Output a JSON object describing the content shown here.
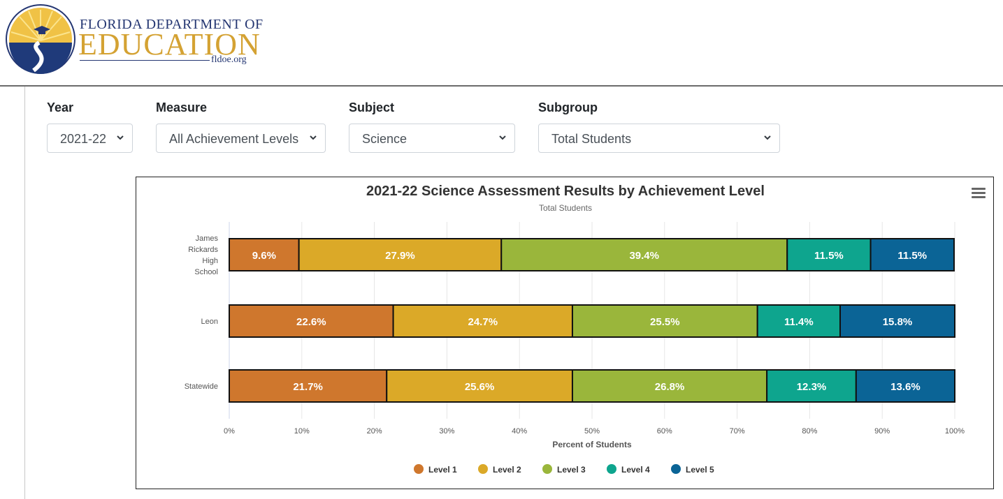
{
  "header": {
    "logo_line1": "FLORIDA DEPARTMENT OF",
    "logo_line2": "EDUCATION",
    "logo_url": "fldoe.org"
  },
  "filters": [
    {
      "label": "Year",
      "value": "2021-22"
    },
    {
      "label": "Measure",
      "value": "All Achievement Levels"
    },
    {
      "label": "Subject",
      "value": "Science"
    },
    {
      "label": "Subgroup",
      "value": "Total Students"
    }
  ],
  "chart_data": {
    "type": "bar",
    "orientation": "horizontal",
    "stacked": "percent",
    "title": "2021-22 Science Assessment Results by Achievement Level",
    "subtitle": "Total Students",
    "xlabel": "Percent of Students",
    "ylabel": "",
    "xlim": [
      0,
      100
    ],
    "x_ticks": [
      "0%",
      "10%",
      "20%",
      "30%",
      "40%",
      "50%",
      "60%",
      "70%",
      "80%",
      "90%",
      "100%"
    ],
    "categories": [
      "James Rickards High School",
      "Leon",
      "Statewide"
    ],
    "series": [
      {
        "name": "Level 1",
        "color": "#cf772d",
        "values": [
          9.6,
          22.6,
          21.7
        ]
      },
      {
        "name": "Level 2",
        "color": "#dba928",
        "values": [
          27.9,
          24.7,
          25.6
        ]
      },
      {
        "name": "Level 3",
        "color": "#9ab63b",
        "values": [
          39.4,
          25.5,
          26.8
        ]
      },
      {
        "name": "Level 4",
        "color": "#0ea58e",
        "values": [
          11.5,
          11.4,
          12.3
        ]
      },
      {
        "name": "Level 5",
        "color": "#0b6496",
        "values": [
          11.5,
          15.8,
          13.6
        ]
      }
    ],
    "data_labels": [
      [
        "9.6%",
        "27.9%",
        "39.4%",
        "11.5%",
        "11.5%"
      ],
      [
        "22.6%",
        "24.7%",
        "25.5%",
        "11.4%",
        "15.8%"
      ],
      [
        "21.7%",
        "25.6%",
        "26.8%",
        "12.3%",
        "13.6%"
      ]
    ],
    "grid": true,
    "legend_position": "bottom"
  }
}
